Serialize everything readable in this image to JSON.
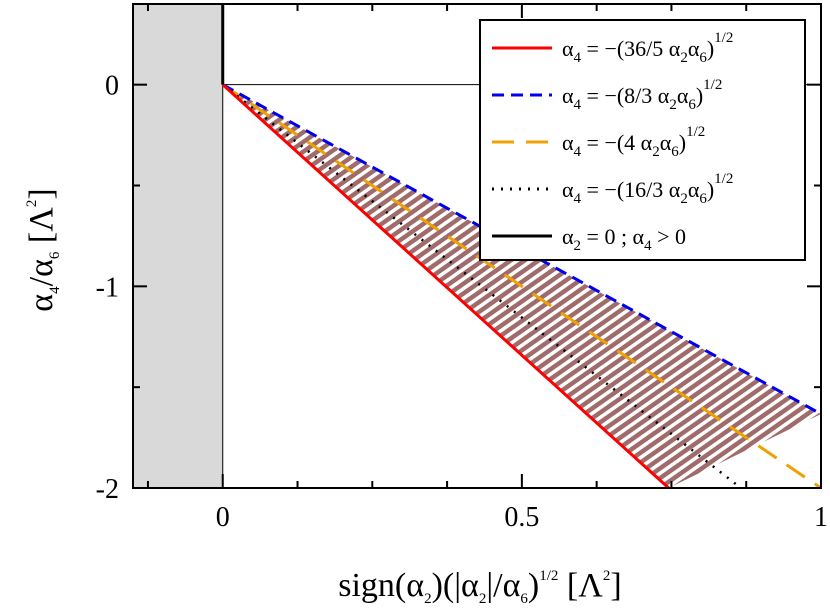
{
  "chart_data": {
    "type": "line",
    "title": "",
    "xlabel": {
      "prefix": "sign(α",
      "sub1": "2",
      "mid": ")(|α",
      "sub2": "2",
      "mid2": "|/α",
      "sub3": "6",
      "mid3": ")",
      "sup1": "1/2",
      "mid4": " [Λ",
      "sup2": "2",
      "suffix": "]"
    },
    "ylabel": {
      "a": "α",
      "sub1": "4",
      "b": "/α",
      "sub2": "6",
      "c": " [Λ",
      "sup": "2",
      "d": "]"
    },
    "xlim": [
      -0.15,
      1.0
    ],
    "ylim": [
      -2.0,
      0.4
    ],
    "x_ticks": [
      {
        "value": 0,
        "label": "0"
      },
      {
        "value": 0.5,
        "label": "0.5"
      },
      {
        "value": 1,
        "label": "1"
      }
    ],
    "y_ticks": [
      {
        "value": 0,
        "label": "0"
      },
      {
        "value": -1,
        "label": "-1"
      },
      {
        "value": -2,
        "label": "-2"
      }
    ],
    "shaded_region": {
      "x": [
        -0.15,
        0.0
      ],
      "color": "#d9d9d9"
    },
    "hatched_region": {
      "description_between": [
        "a4 = -(36/5 a2 a6)^1/2",
        "a4 = -(8/3 a2 a6)^1/2"
      ],
      "color": "#a06b6b"
    },
    "series": [
      {
        "id": "red",
        "coef": 7.2,
        "color": "#ff0000",
        "dash": "solid",
        "legend": {
          "pre": "α",
          "sub": "4",
          "mid": " = −(36/5 α",
          "sub2": "2",
          "mid2": "α",
          "sub3": "6",
          "post": ")",
          "sup": "1/2"
        }
      },
      {
        "id": "blue",
        "coef": 2.6667,
        "color": "#0000ee",
        "dash": "dashed",
        "legend": {
          "pre": "α",
          "sub": "4",
          "mid": " = −(8/3 α",
          "sub2": "2",
          "mid2": "α",
          "sub3": "6",
          "post": ")",
          "sup": "1/2"
        }
      },
      {
        "id": "orange",
        "coef": 4.0,
        "color": "#f0a000",
        "dash": "longdash",
        "legend": {
          "pre": "α",
          "sub": "4",
          "mid": " = −(4 α",
          "sub2": "2",
          "mid2": "α",
          "sub3": "6",
          "post": ")",
          "sup": "1/2"
        }
      },
      {
        "id": "dotted",
        "coef": 5.3333,
        "color": "#000000",
        "dash": "dotted",
        "legend": {
          "pre": "α",
          "sub": "4",
          "mid": " = −(16/3 α",
          "sub2": "2",
          "mid2": "α",
          "sub3": "6",
          "post": ")",
          "sup": "1/2"
        }
      },
      {
        "id": "vertical",
        "color": "#000000",
        "dash": "solid",
        "legend": {
          "pre": "α",
          "sub": "2",
          "mid": " = 0 ; α",
          "sub2": "4",
          "mid2": " > 0",
          "sub3": "",
          "post": "",
          "sup": ""
        }
      }
    ],
    "legend_position": "top-right",
    "grid": false
  }
}
